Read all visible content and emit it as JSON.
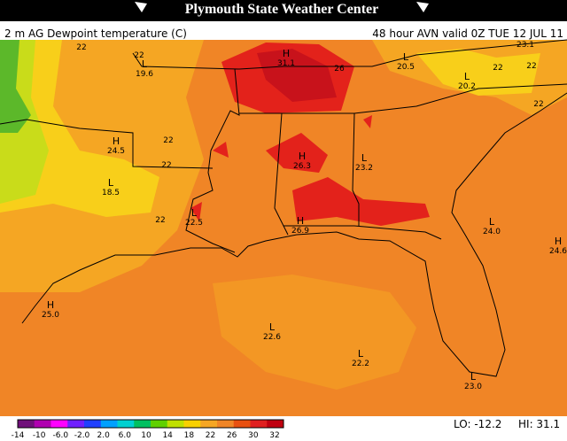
{
  "header": {
    "title": "Plymouth State Weather Center",
    "product": "2 m AG Dewpoint temperature (C)",
    "valid": "48 hour AVN valid 0Z TUE 12 JUL 11"
  },
  "map": {
    "labels": [
      {
        "value": "22"
      },
      {
        "value": "22"
      },
      {
        "mark": "L",
        "value": "19.6"
      },
      {
        "mark": "H",
        "value": "31.1"
      },
      {
        "value": "26"
      },
      {
        "mark": "L",
        "value": "20.5"
      },
      {
        "value": "22"
      },
      {
        "value": "22"
      },
      {
        "value": "23.1"
      },
      {
        "mark": "L",
        "value": "20.2"
      },
      {
        "value": "22"
      },
      {
        "mark": "H",
        "value": "24.5"
      },
      {
        "value": "22"
      },
      {
        "value": "22"
      },
      {
        "mark": "H",
        "value": "26.3"
      },
      {
        "mark": "L",
        "value": "23.2"
      },
      {
        "mark": "L",
        "value": "18.5"
      },
      {
        "value": "22"
      },
      {
        "mark": "L",
        "value": "22.5"
      },
      {
        "mark": "H",
        "value": "26.9"
      },
      {
        "mark": "L",
        "value": "24.0"
      },
      {
        "mark": "H",
        "value": "24.6"
      },
      {
        "mark": "H",
        "value": "25.0"
      },
      {
        "mark": "L",
        "value": "22.6"
      },
      {
        "mark": "L",
        "value": "22.2"
      },
      {
        "mark": "L",
        "value": "23.0"
      }
    ]
  },
  "colorbar": {
    "labels": [
      "-14",
      "-10",
      "-6.0",
      "-2.0",
      "2.0",
      "6.0",
      "10",
      "14",
      "18",
      "22",
      "26",
      "30",
      "32"
    ]
  },
  "footer": {
    "lo": "LO: -12.2",
    "hi": "HI: 31.1"
  }
}
